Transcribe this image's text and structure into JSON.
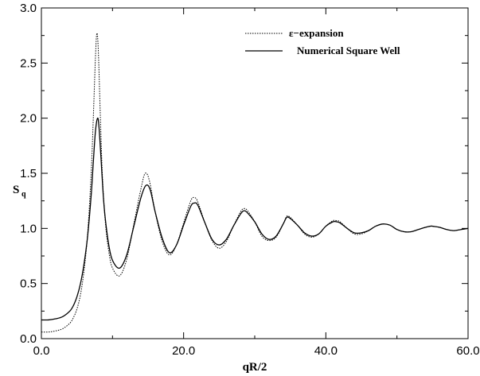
{
  "chart_data": {
    "type": "line",
    "xlabel": "qR/2",
    "ylabel": "S",
    "ylabel_subscript": "q",
    "xlim": [
      0,
      60
    ],
    "ylim": [
      0,
      3
    ],
    "xticks": [
      "0.0",
      "20.0",
      "40.0",
      "60.0"
    ],
    "yticks": [
      "0.0",
      "0.5",
      "1.0",
      "1.5",
      "2.0",
      "2.5",
      "3.0"
    ],
    "grid": false,
    "legend_position": "top-right",
    "series": [
      {
        "name": "ε−expansion",
        "style": "dotted",
        "color": "#000000",
        "x": [
          0,
          1,
          2,
          3,
          4,
          4.5,
          5,
          5.5,
          6,
          6.5,
          7,
          7.3,
          7.6,
          7.8,
          8.0,
          8.3,
          8.6,
          9,
          9.5,
          10,
          11,
          12,
          13,
          14,
          14.6,
          15.2,
          16,
          17,
          18,
          19,
          20,
          21,
          21.5,
          22,
          23,
          24,
          25,
          26,
          27,
          28,
          28.5,
          29,
          30,
          31,
          32,
          33,
          34,
          34.5,
          35,
          36,
          37,
          38,
          39,
          40,
          41,
          41.5,
          42,
          43,
          44,
          45,
          46,
          47,
          48,
          49,
          50,
          51,
          52,
          53,
          54,
          54.7,
          55,
          56,
          57,
          58,
          59,
          60
        ],
        "values": [
          0.06,
          0.06,
          0.07,
          0.09,
          0.14,
          0.19,
          0.27,
          0.4,
          0.62,
          0.95,
          1.5,
          2.0,
          2.55,
          2.77,
          2.62,
          2.0,
          1.45,
          1.05,
          0.78,
          0.64,
          0.57,
          0.72,
          1.04,
          1.36,
          1.5,
          1.43,
          1.15,
          0.88,
          0.76,
          0.85,
          1.05,
          1.25,
          1.28,
          1.24,
          1.05,
          0.89,
          0.82,
          0.88,
          1.02,
          1.15,
          1.18,
          1.16,
          1.06,
          0.93,
          0.89,
          0.92,
          1.04,
          1.11,
          1.1,
          1.03,
          0.95,
          0.92,
          0.95,
          1.02,
          1.07,
          1.07,
          1.06,
          1.0,
          0.95,
          0.95,
          0.98,
          1.02,
          1.04,
          1.03,
          0.99,
          0.97,
          0.97,
          0.99,
          1.01,
          1.02,
          1.02,
          1.01,
          0.99,
          0.98,
          0.99,
          1.0
        ]
      },
      {
        "name": "Numerical Square Well",
        "style": "solid",
        "color": "#000000",
        "x": [
          0,
          1,
          2,
          3,
          4,
          4.5,
          5,
          5.5,
          6,
          6.5,
          7,
          7.3,
          7.6,
          7.9,
          8.1,
          8.4,
          8.7,
          9,
          9.5,
          10,
          11,
          12,
          13,
          14,
          14.7,
          15.3,
          16,
          17,
          18,
          19,
          20,
          21,
          21.5,
          22,
          23,
          24,
          25,
          26,
          27,
          28,
          28.5,
          29,
          30,
          31,
          32,
          33,
          34,
          34.5,
          35,
          36,
          37,
          38,
          39,
          40,
          41,
          41.5,
          42,
          43,
          44,
          45,
          46,
          47,
          48,
          49,
          50,
          51,
          52,
          53,
          54,
          54.7,
          55,
          56,
          57,
          58,
          59,
          60
        ],
        "values": [
          0.17,
          0.17,
          0.18,
          0.2,
          0.25,
          0.3,
          0.38,
          0.5,
          0.68,
          0.93,
          1.3,
          1.6,
          1.88,
          2.0,
          1.92,
          1.62,
          1.3,
          1.08,
          0.84,
          0.71,
          0.64,
          0.76,
          1.02,
          1.28,
          1.39,
          1.35,
          1.15,
          0.91,
          0.78,
          0.85,
          1.03,
          1.2,
          1.23,
          1.21,
          1.05,
          0.9,
          0.85,
          0.9,
          1.02,
          1.13,
          1.16,
          1.14,
          1.06,
          0.95,
          0.9,
          0.93,
          1.04,
          1.1,
          1.09,
          1.03,
          0.96,
          0.93,
          0.95,
          1.02,
          1.06,
          1.06,
          1.05,
          1.0,
          0.96,
          0.96,
          0.98,
          1.02,
          1.04,
          1.03,
          0.99,
          0.97,
          0.97,
          0.99,
          1.01,
          1.02,
          1.02,
          1.01,
          0.99,
          0.98,
          0.99,
          1.0
        ]
      }
    ]
  }
}
